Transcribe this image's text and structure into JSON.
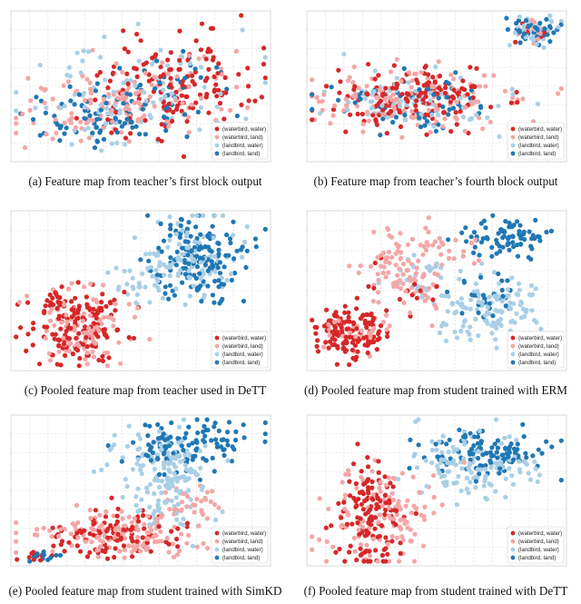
{
  "colors": {
    "waterbird_water": "#d62728",
    "waterbird_land": "#f4a6a6",
    "landbird_water": "#a9cfe6",
    "landbird_land": "#1f77b4"
  },
  "legend": {
    "items": [
      {
        "label": "(waterbird, water)",
        "color": "#d62728"
      },
      {
        "label": "(waterbird, land)",
        "color": "#f4a6a6"
      },
      {
        "label": "(landbird, water)",
        "color": "#a9cfe6"
      },
      {
        "label": "(landbird, land)",
        "color": "#1f77b4"
      }
    ],
    "placement": "bottom-right"
  },
  "chart_data": [
    {
      "type": "scatter",
      "panel_id": "a",
      "caption": "(a)  Feature map from teacher’s first block output",
      "grid": true,
      "series": [
        {
          "name": "(waterbird, water)",
          "clusters": [
            {
              "cx": 0.65,
              "cy": 0.55,
              "sx": 0.14,
              "sy": 0.16,
              "n": 110
            },
            {
              "cx": 0.45,
              "cy": 0.4,
              "sx": 0.15,
              "sy": 0.15,
              "n": 40
            }
          ]
        },
        {
          "name": "(waterbird, land)",
          "clusters": [
            {
              "cx": 0.35,
              "cy": 0.35,
              "sx": 0.17,
              "sy": 0.11,
              "n": 90
            },
            {
              "cx": 0.6,
              "cy": 0.45,
              "sx": 0.15,
              "sy": 0.15,
              "n": 50
            }
          ]
        },
        {
          "name": "(landbird, water)",
          "clusters": [
            {
              "cx": 0.45,
              "cy": 0.45,
              "sx": 0.22,
              "sy": 0.18,
              "n": 90
            }
          ]
        },
        {
          "name": "(landbird, land)",
          "clusters": [
            {
              "cx": 0.35,
              "cy": 0.33,
              "sx": 0.15,
              "sy": 0.09,
              "n": 90
            },
            {
              "cx": 0.62,
              "cy": 0.5,
              "sx": 0.1,
              "sy": 0.12,
              "n": 25
            }
          ]
        }
      ]
    },
    {
      "type": "scatter",
      "panel_id": "b",
      "caption": "(b)  Feature map from teacher’s fourth block output",
      "grid": true,
      "series": [
        {
          "name": "(waterbird, water)",
          "clusters": [
            {
              "cx": 0.4,
              "cy": 0.42,
              "sx": 0.17,
              "sy": 0.1,
              "n": 150
            },
            {
              "cx": 0.88,
              "cy": 0.88,
              "sx": 0.04,
              "sy": 0.04,
              "n": 10
            }
          ]
        },
        {
          "name": "(waterbird, land)",
          "clusters": [
            {
              "cx": 0.42,
              "cy": 0.42,
              "sx": 0.19,
              "sy": 0.11,
              "n": 150
            },
            {
              "cx": 0.88,
              "cy": 0.88,
              "sx": 0.04,
              "sy": 0.04,
              "n": 15
            }
          ]
        },
        {
          "name": "(landbird, water)",
          "clusters": [
            {
              "cx": 0.42,
              "cy": 0.38,
              "sx": 0.17,
              "sy": 0.1,
              "n": 80
            },
            {
              "cx": 0.88,
              "cy": 0.88,
              "sx": 0.05,
              "sy": 0.05,
              "n": 30
            }
          ]
        },
        {
          "name": "(landbird, land)",
          "clusters": [
            {
              "cx": 0.4,
              "cy": 0.38,
              "sx": 0.15,
              "sy": 0.09,
              "n": 60
            },
            {
              "cx": 0.88,
              "cy": 0.88,
              "sx": 0.05,
              "sy": 0.05,
              "n": 40
            }
          ]
        }
      ]
    },
    {
      "type": "scatter",
      "panel_id": "c",
      "caption": "(c)  Pooled feature map from teacher used in DeTT",
      "grid": true,
      "series": [
        {
          "name": "(waterbird, water)",
          "clusters": [
            {
              "cx": 0.25,
              "cy": 0.3,
              "sx": 0.09,
              "sy": 0.12,
              "n": 160
            }
          ]
        },
        {
          "name": "(waterbird, land)",
          "clusters": [
            {
              "cx": 0.28,
              "cy": 0.28,
              "sx": 0.1,
              "sy": 0.13,
              "n": 100
            }
          ]
        },
        {
          "name": "(landbird, water)",
          "clusters": [
            {
              "cx": 0.68,
              "cy": 0.7,
              "sx": 0.09,
              "sy": 0.14,
              "n": 100
            },
            {
              "cx": 0.52,
              "cy": 0.55,
              "sx": 0.07,
              "sy": 0.08,
              "n": 30
            }
          ]
        },
        {
          "name": "(landbird, land)",
          "clusters": [
            {
              "cx": 0.72,
              "cy": 0.7,
              "sx": 0.09,
              "sy": 0.13,
              "n": 150
            }
          ]
        }
      ]
    },
    {
      "type": "scatter",
      "panel_id": "d",
      "caption": "(d)  Pooled feature map from student trained with ERM",
      "grid": true,
      "series": [
        {
          "name": "(waterbird, water)",
          "clusters": [
            {
              "cx": 0.17,
              "cy": 0.25,
              "sx": 0.07,
              "sy": 0.08,
              "n": 130
            },
            {
              "cx": 0.4,
              "cy": 0.55,
              "sx": 0.08,
              "sy": 0.1,
              "n": 15
            }
          ]
        },
        {
          "name": "(waterbird, land)",
          "clusters": [
            {
              "cx": 0.4,
              "cy": 0.65,
              "sx": 0.1,
              "sy": 0.14,
              "n": 120
            },
            {
              "cx": 0.2,
              "cy": 0.25,
              "sx": 0.06,
              "sy": 0.07,
              "n": 30
            }
          ]
        },
        {
          "name": "(landbird, water)",
          "clusters": [
            {
              "cx": 0.7,
              "cy": 0.38,
              "sx": 0.11,
              "sy": 0.11,
              "n": 130
            },
            {
              "cx": 0.45,
              "cy": 0.65,
              "sx": 0.07,
              "sy": 0.08,
              "n": 20
            }
          ]
        },
        {
          "name": "(landbird, land)",
          "clusters": [
            {
              "cx": 0.78,
              "cy": 0.83,
              "sx": 0.08,
              "sy": 0.06,
              "n": 80
            },
            {
              "cx": 0.7,
              "cy": 0.45,
              "sx": 0.07,
              "sy": 0.07,
              "n": 30
            }
          ]
        }
      ]
    },
    {
      "type": "scatter",
      "panel_id": "e",
      "caption": "(e)  Pooled feature map from student trained with SimKD",
      "grid": true,
      "series": [
        {
          "name": "(waterbird, water)",
          "clusters": [
            {
              "cx": 0.4,
              "cy": 0.22,
              "sx": 0.13,
              "sy": 0.08,
              "n": 100
            },
            {
              "cx": 0.08,
              "cy": 0.06,
              "sx": 0.03,
              "sy": 0.02,
              "n": 10
            }
          ]
        },
        {
          "name": "(waterbird, land)",
          "clusters": [
            {
              "cx": 0.42,
              "cy": 0.2,
              "sx": 0.17,
              "sy": 0.08,
              "n": 140
            },
            {
              "cx": 0.68,
              "cy": 0.4,
              "sx": 0.08,
              "sy": 0.07,
              "n": 30
            }
          ]
        },
        {
          "name": "(landbird, water)",
          "clusters": [
            {
              "cx": 0.62,
              "cy": 0.55,
              "sx": 0.08,
              "sy": 0.15,
              "n": 130
            },
            {
              "cx": 0.55,
              "cy": 0.75,
              "sx": 0.1,
              "sy": 0.07,
              "n": 40
            }
          ]
        },
        {
          "name": "(landbird, land)",
          "clusters": [
            {
              "cx": 0.7,
              "cy": 0.8,
              "sx": 0.12,
              "sy": 0.09,
              "n": 110
            },
            {
              "cx": 0.12,
              "cy": 0.06,
              "sx": 0.04,
              "sy": 0.02,
              "n": 12
            }
          ]
        }
      ]
    },
    {
      "type": "scatter",
      "panel_id": "f",
      "caption": "(f)  Pooled feature map from student trained with DeTT",
      "grid": true,
      "series": [
        {
          "name": "(waterbird, water)",
          "clusters": [
            {
              "cx": 0.25,
              "cy": 0.33,
              "sx": 0.06,
              "sy": 0.18,
              "n": 130
            }
          ]
        },
        {
          "name": "(waterbird, land)",
          "clusters": [
            {
              "cx": 0.28,
              "cy": 0.32,
              "sx": 0.11,
              "sy": 0.17,
              "n": 120
            }
          ]
        },
        {
          "name": "(landbird, water)",
          "clusters": [
            {
              "cx": 0.64,
              "cy": 0.67,
              "sx": 0.14,
              "sy": 0.11,
              "n": 130
            }
          ]
        },
        {
          "name": "(landbird, land)",
          "clusters": [
            {
              "cx": 0.68,
              "cy": 0.75,
              "sx": 0.12,
              "sy": 0.08,
              "n": 110
            }
          ]
        }
      ]
    }
  ]
}
